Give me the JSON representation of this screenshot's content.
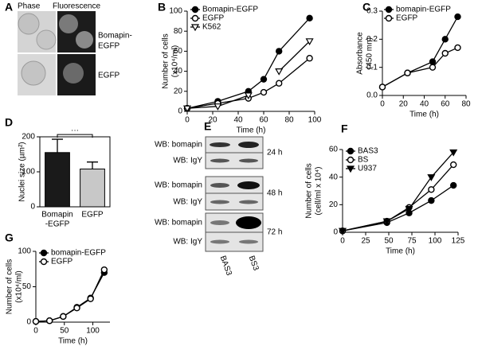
{
  "chart_data": [
    {
      "type": "line",
      "panel": "B",
      "xlabel": "Time (h)",
      "ylabel": [
        "Number of cells",
        "(x10⁴/ml)"
      ],
      "x": [
        0,
        24,
        48,
        60,
        72,
        96
      ],
      "xlim": [
        0,
        100
      ],
      "xticks": [
        0,
        20,
        40,
        60,
        80,
        100
      ],
      "ylim": [
        0,
        100
      ],
      "yticks": [
        0,
        20,
        40,
        60,
        80,
        100
      ],
      "legend": "upper-left",
      "series": [
        {
          "name": "Bomapin-EGFP",
          "color": "#000000",
          "marker": "filled-circle",
          "values": [
            3,
            10,
            20,
            32,
            60,
            93
          ]
        },
        {
          "name": "EGFP",
          "color": "#000000",
          "marker": "open-circle",
          "values": [
            3,
            8,
            13,
            19,
            28,
            53
          ]
        },
        {
          "name": "K562",
          "color": "#000000",
          "marker": "open-triangle-down",
          "values": [
            3,
            5,
            16,
            null,
            40,
            70
          ]
        }
      ]
    },
    {
      "type": "line",
      "panel": "C",
      "xlabel": "Time (h)",
      "ylabel": [
        "Absorbance",
        "(450 mn)"
      ],
      "x": [
        0,
        24,
        48,
        60,
        72
      ],
      "xlim": [
        0,
        80
      ],
      "xticks": [
        0,
        20,
        40,
        60,
        80
      ],
      "ylim": [
        0,
        0.3
      ],
      "yticks": [
        {
          "value": 0,
          "label": "0.0"
        },
        0.1,
        0.2,
        0.3
      ],
      "legend": "upper-left",
      "series": [
        {
          "name": "bomapin-EGFP",
          "color": "#000000",
          "marker": "filled-circle",
          "values": [
            0.03,
            0.08,
            0.12,
            0.2,
            0.28
          ]
        },
        {
          "name": "EGFP",
          "color": "#000000",
          "marker": "open-circle",
          "values": [
            0.03,
            0.08,
            0.1,
            0.15,
            0.17
          ]
        }
      ]
    },
    {
      "type": "bar",
      "panel": "D",
      "ylabel": [
        "Nuclei size (µm²)"
      ],
      "categories": [
        [
          "Bomapin",
          "-EGFP"
        ],
        [
          "EGFP"
        ]
      ],
      "values": [
        155,
        108
      ],
      "errors": [
        38,
        20
      ],
      "colors": [
        "#1a1a1a",
        "#c8c8c8"
      ],
      "ylim": [
        0,
        200
      ],
      "yticks": [
        0,
        100,
        200
      ],
      "annotation": "···"
    },
    {
      "type": "line",
      "panel": "F",
      "xlabel": "Time (h)",
      "ylabel": [
        "Number of cells",
        "(cell/ml x 10⁴)"
      ],
      "x": [
        0,
        48,
        72,
        96,
        120
      ],
      "xlim": [
        0,
        125
      ],
      "xticks": [
        0,
        25,
        50,
        75,
        100,
        125
      ],
      "ylim": [
        0,
        60
      ],
      "yticks": [
        0,
        20,
        40,
        60
      ],
      "legend": "upper-left",
      "series": [
        {
          "name": "BAS3",
          "color": "#000000",
          "marker": "filled-circle",
          "values": [
            1,
            7,
            14,
            23,
            34
          ]
        },
        {
          "name": "BS",
          "color": "#000000",
          "marker": "open-circle",
          "values": [
            1,
            8,
            18,
            31,
            49
          ]
        },
        {
          "name": "U937",
          "color": "#000000",
          "marker": "filled-triangle-down",
          "values": [
            1,
            8,
            17,
            40,
            58
          ]
        }
      ]
    },
    {
      "type": "line",
      "panel": "G",
      "xlabel": "Time (h)",
      "ylabel": [
        "Number of cells",
        "(x10⁴/ml)"
      ],
      "x": [
        0,
        24,
        48,
        72,
        96,
        120
      ],
      "xlim": [
        0,
        130
      ],
      "xticks": [
        0,
        50,
        100
      ],
      "ylim": [
        0,
        100
      ],
      "yticks": [
        0,
        50,
        100
      ],
      "legend": "upper-left",
      "series": [
        {
          "name": "bomapin-EGFP",
          "color": "#000000",
          "marker": "filled-circle",
          "values": [
            1,
            2,
            8,
            21,
            34,
            70
          ]
        },
        {
          "name": "EGFP",
          "color": "#000000",
          "marker": "open-circle",
          "values": [
            1,
            2,
            8,
            20,
            33,
            74
          ]
        }
      ]
    }
  ],
  "panel_a": {
    "panel": "A",
    "headers": [
      "Phase",
      "Fluorescence"
    ],
    "rows": [
      [
        "Bomapin-",
        "EGFP"
      ],
      [
        "EGFP"
      ]
    ]
  },
  "panel_e": {
    "panel": "E",
    "blot_labels": [
      "WB: bomapin",
      "WB: IgY"
    ],
    "times": [
      "24 h",
      "48 h",
      "72 h"
    ],
    "lanes": [
      "BAS3",
      "BS3"
    ]
  }
}
